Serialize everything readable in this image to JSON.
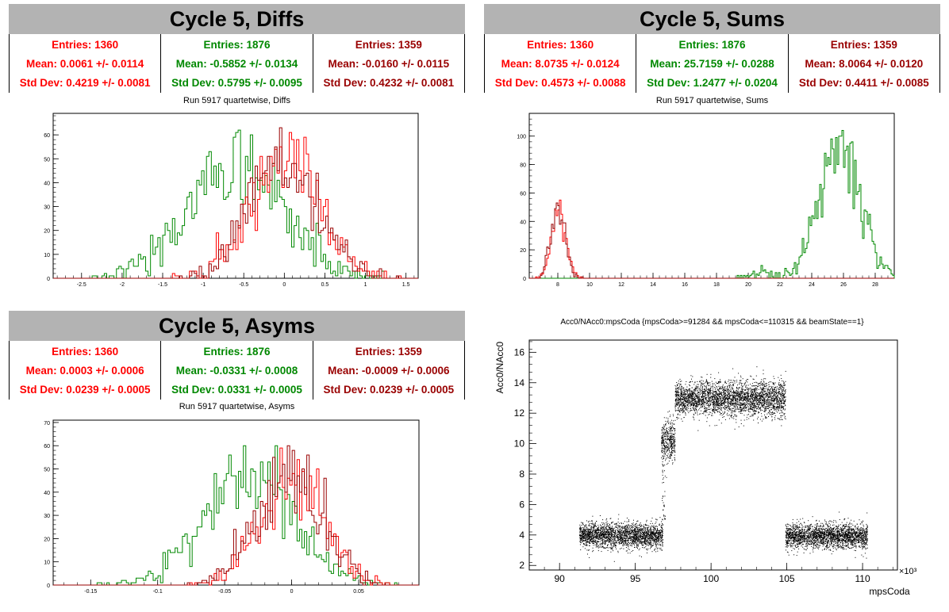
{
  "colors": {
    "red": "#ff0000",
    "green": "#008800",
    "darkred": "#990000"
  },
  "panels": {
    "diffs": {
      "title": "Cycle 5, Diffs",
      "subtitle": "Run 5917 quartetwise, Diffs",
      "stats": [
        {
          "entries": "Entries: 1360",
          "mean": "Mean: 0.0061 +/- 0.0114",
          "std": "Std Dev: 0.4219 +/- 0.0081"
        },
        {
          "entries": "Entries: 1876",
          "mean": "Mean: -0.5852 +/- 0.0134",
          "std": "Std Dev: 0.5795 +/- 0.0095"
        },
        {
          "entries": "Entries: 1359",
          "mean": "Mean: -0.0160 +/- 0.0115",
          "std": "Std Dev: 0.4232 +/- 0.0081"
        }
      ]
    },
    "sums": {
      "title": "Cycle 5, Sums",
      "subtitle": "Run 5917 quartetwise, Sums",
      "stats": [
        {
          "entries": "Entries: 1360",
          "mean": "Mean: 8.0735 +/- 0.0124",
          "std": "Std Dev: 0.4573 +/- 0.0088"
        },
        {
          "entries": "Entries: 1876",
          "mean": "Mean: 25.7159 +/- 0.0288",
          "std": "Std Dev: 1.2477 +/- 0.0204"
        },
        {
          "entries": "Entries: 1359",
          "mean": "Mean: 8.0064 +/- 0.0120",
          "std": "Std Dev: 0.4411 +/- 0.0085"
        }
      ]
    },
    "asyms": {
      "title": "Cycle 5, Asyms",
      "subtitle": "Run 5917 quartetwise, Asyms",
      "stats": [
        {
          "entries": "Entries: 1360",
          "mean": "Mean: 0.0003 +/- 0.0006",
          "std": "Std Dev: 0.0239 +/- 0.0005"
        },
        {
          "entries": "Entries: 1876",
          "mean": "Mean: -0.0331 +/- 0.0008",
          "std": "Std Dev: 0.0331 +/- 0.0005"
        },
        {
          "entries": "Entries: 1359",
          "mean": "Mean: -0.0009 +/- 0.0006",
          "std": "Std Dev: 0.0239 +/- 0.0005"
        }
      ]
    },
    "scatter": {
      "title": "Acc0/NAcc0:mpsCoda {mpsCoda>=91284 && mpsCoda<=110315 && beamState==1}",
      "xlabel": "mpsCoda",
      "ylabel": "Acc0/NAcc0",
      "xmultiplier": "×10³"
    }
  },
  "chart_data": [
    {
      "type": "histogram",
      "name": "diffs",
      "xlim": [
        -2.85,
        1.65
      ],
      "ylim": [
        0,
        69
      ],
      "xticks": [
        -2.5,
        -2,
        -1.5,
        -1,
        -0.5,
        0,
        0.5,
        1,
        1.5
      ],
      "yticks": [
        0,
        10,
        20,
        30,
        40,
        50,
        60
      ],
      "series": [
        {
          "color": "#008800",
          "mean": -0.5852,
          "std": 0.5795,
          "entries": 1876,
          "peak": 66
        },
        {
          "color": "#ff0000",
          "mean": 0.0061,
          "std": 0.4219,
          "entries": 1360,
          "peak": 57
        },
        {
          "color": "#990000",
          "mean": -0.016,
          "std": 0.4232,
          "entries": 1359,
          "peak": 57
        }
      ]
    },
    {
      "type": "histogram",
      "name": "sums",
      "xlim": [
        6.2,
        29.2
      ],
      "ylim": [
        0,
        116
      ],
      "xticks": [
        8,
        10,
        12,
        14,
        16,
        18,
        20,
        22,
        24,
        26,
        28
      ],
      "yticks": [
        0,
        20,
        40,
        60,
        80,
        100
      ],
      "series": [
        {
          "color": "#008800",
          "mean": 25.7159,
          "std": 1.2477,
          "entries": 1876,
          "peak": 114
        },
        {
          "color": "#ff0000",
          "mean": 8.0735,
          "std": 0.4573,
          "entries": 1360,
          "peak": 51
        },
        {
          "color": "#990000",
          "mean": 8.0064,
          "std": 0.4411,
          "entries": 1359,
          "peak": 51
        }
      ]
    },
    {
      "type": "histogram",
      "name": "asyms",
      "xlim": [
        -0.178,
        0.095
      ],
      "ylim": [
        0,
        71
      ],
      "xticks": [
        -0.15,
        -0.1,
        -0.05,
        0,
        0.05
      ],
      "yticks": [
        0,
        10,
        20,
        30,
        40,
        50,
        60,
        70
      ],
      "series": [
        {
          "color": "#008800",
          "mean": -0.0331,
          "std": 0.0331,
          "entries": 1876,
          "peak": 68
        },
        {
          "color": "#ff0000",
          "mean": 0.0003,
          "std": 0.0239,
          "entries": 1360,
          "peak": 58
        },
        {
          "color": "#990000",
          "mean": -0.0009,
          "std": 0.0239,
          "entries": 1359,
          "peak": 58
        }
      ]
    },
    {
      "type": "scatter",
      "name": "acc0-vs-mpscoda",
      "xlim": [
        88,
        112.3
      ],
      "ylim": [
        1.7,
        16.8
      ],
      "xticks": [
        90,
        95,
        100,
        105,
        110
      ],
      "yticks": [
        2,
        4,
        6,
        8,
        10,
        12,
        14,
        16
      ],
      "clusters": [
        {
          "xrange": [
            91.3,
            96.8
          ],
          "ycenter": 4.0,
          "yspread": 0.4
        },
        {
          "xrange": [
            96.7,
            97.6
          ],
          "ycenter": 10.2,
          "yspread": 0.7
        },
        {
          "xrange": [
            97.6,
            101.5
          ],
          "ycenter": 13.0,
          "yspread": 0.55
        },
        {
          "xrange": [
            101.5,
            104.9
          ],
          "ycenter": 13.0,
          "yspread": 0.6
        },
        {
          "xrange": [
            104.9,
            110.3
          ],
          "ycenter": 3.95,
          "yspread": 0.4
        }
      ]
    }
  ]
}
